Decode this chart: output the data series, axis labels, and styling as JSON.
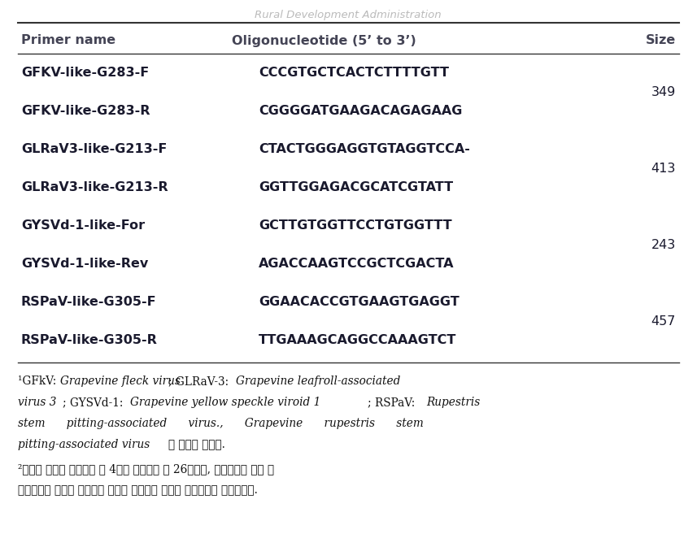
{
  "title_watermark": "Rural Development Administration",
  "header": [
    "Primer name",
    "Oligonucleotide (5’ to 3’)",
    "Size"
  ],
  "rows": [
    [
      "GFKV-like-G283-F",
      "CCCGTGCTCACTCTTTTGTT",
      ""
    ],
    [
      "GFKV-like-G283-R",
      "CGGGGATGAAGACAGAGAAG",
      "349"
    ],
    [
      "GLRaV3-like-G213-F",
      "CTACTGGGAGGTGTAGGTCCA-",
      ""
    ],
    [
      "GLRaV3-like-G213-R",
      "GGTTGGAGACGCATCGTATT",
      "413"
    ],
    [
      "GYSVd-1-like-For",
      "GCTTGTGGTTCCTGTGGTTT",
      ""
    ],
    [
      "GYSVd-1-like-Rev",
      "AGACCAAGTCCGCTCGACTA",
      "243"
    ],
    [
      "RSPaV-like-G305-F",
      "GGAACACCGTGAAGTGAGGT",
      ""
    ],
    [
      "RSPaV-like-G305-R",
      "TTGAAAGCAGGCCAAAGTCT",
      "457"
    ]
  ],
  "size_positions": [
    {
      "label": "349",
      "rows": [
        0,
        1
      ]
    },
    {
      "label": "413",
      "rows": [
        2,
        3
      ]
    },
    {
      "label": "243",
      "rows": [
        4,
        5
      ]
    },
    {
      "label": "457",
      "rows": [
        6,
        7
      ]
    }
  ],
  "bg_color": "#ffffff",
  "text_color": "#1a1a2e",
  "header_color": "#444455",
  "line_color": "#333333",
  "watermark_color": "#bbbbbb",
  "header_fontsize": 11.5,
  "body_fontsize": 11.5,
  "footnote_fontsize": 9.8,
  "fn1_lines": [
    "^1GFkV:  Grapevine fleck virus;  GLRaV-3:  Grapevine leafroll-associated",
    "virus 3;  GYSVd-1:  Grapevine yellow speckle viroid 1;  RSPaV:  Rupestris",
    "stem      pitting-associated      virus.,      Grapevine      rupestris      stem",
    "pitting-associated virus로 학명이 변경됨."
  ],
  "fn1_italic_ranges": [
    [
      [
        14,
        35
      ],
      [
        46,
        76
      ]
    ],
    [
      [
        0,
        6
      ],
      [
        18,
        50
      ],
      [
        58,
        67
      ]
    ],
    [
      [
        0,
        66
      ]
    ],
    [
      [
        0,
        24
      ]
    ]
  ],
  "fn2_lines": [
    "²2포도에 보고된 병원체는 위 4종을 포함하여 총 26종이며, 보고서에는 이번 유",
    "전자원으로 채집한 포도에서 검출된 병원체의 진단용 프라이머를 기입하였음."
  ]
}
